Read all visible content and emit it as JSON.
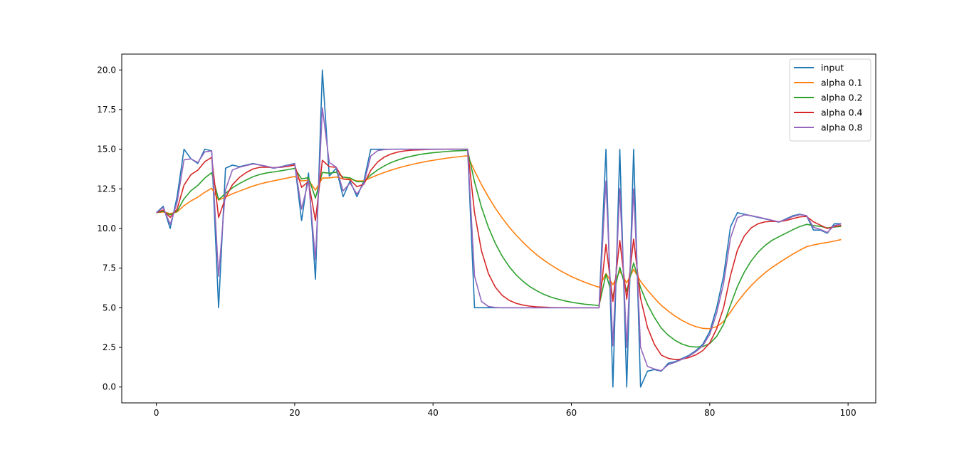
{
  "chart_data": {
    "type": "line",
    "title": "",
    "xlabel": "",
    "ylabel": "",
    "xlim": [
      -5,
      104
    ],
    "ylim": [
      -1,
      21
    ],
    "xticks": [
      0,
      20,
      40,
      60,
      80,
      100
    ],
    "xtick_labels": [
      "0",
      "20",
      "40",
      "60",
      "80",
      "100"
    ],
    "yticks": [
      0,
      2.5,
      5,
      7.5,
      10,
      12.5,
      15,
      17.5,
      20
    ],
    "ytick_labels": [
      "0.0",
      "2.5",
      "5.0",
      "7.5",
      "10.0",
      "12.5",
      "15.0",
      "17.5",
      "20.0"
    ],
    "grid": false,
    "legend_position": "upper-right",
    "series": [
      {
        "name": "input",
        "color": "#1f77b4",
        "values": [
          11,
          11.4,
          10,
          12,
          15,
          14.4,
          14.1,
          15,
          14.9,
          5,
          13.8,
          14,
          13.9,
          14,
          14.1,
          14,
          13.9,
          13.8,
          13.9,
          14,
          14.1,
          10.5,
          13.5,
          6.8,
          20,
          13.3,
          13.8,
          12,
          13,
          12,
          13,
          15,
          15,
          15,
          15,
          15,
          15,
          15,
          15,
          15,
          15,
          15,
          15,
          15,
          15,
          15,
          5,
          5,
          5,
          5,
          5,
          5,
          5,
          5,
          5,
          5,
          5,
          5,
          5,
          5,
          5,
          5,
          5,
          5,
          5,
          15,
          0,
          15,
          0,
          15,
          0,
          1,
          1.1,
          1,
          1.5,
          1.6,
          1.8,
          2,
          2.3,
          2.7,
          3.5,
          5,
          7,
          10.1,
          11,
          10.9,
          10.8,
          10.7,
          10.6,
          10.5,
          10.4,
          10.6,
          10.8,
          10.9,
          10.8,
          9.9,
          9.9,
          9.7,
          10.3,
          10.3
        ]
      },
      {
        "name": "alpha 0.1",
        "color": "#ff7f0e",
        "values": [
          11,
          11.04,
          10.94,
          11.04,
          11.44,
          11.74,
          11.98,
          12.28,
          12.54,
          11.79,
          11.99,
          12.19,
          12.36,
          12.52,
          12.68,
          12.81,
          12.92,
          13.01,
          13.1,
          13.19,
          13.28,
          13,
          13.05,
          12.42,
          13.18,
          13.19,
          13.25,
          13.13,
          13.12,
          13.0,
          13.0,
          13.2,
          13.38,
          13.54,
          13.69,
          13.82,
          13.94,
          14.04,
          14.14,
          14.23,
          14.3,
          14.37,
          14.44,
          14.49,
          14.54,
          14.59,
          13.63,
          12.77,
          11.99,
          11.29,
          10.66,
          10.09,
          9.59,
          9.13,
          8.71,
          8.34,
          8.01,
          7.71,
          7.44,
          7.19,
          6.97,
          6.78,
          6.6,
          6.44,
          6.29,
          7.16,
          6.45,
          7.3,
          6.57,
          7.42,
          6.67,
          6.11,
          5.61,
          5.15,
          4.79,
          4.47,
          4.2,
          3.98,
          3.81,
          3.7,
          3.68,
          3.81,
          4.13,
          4.73,
          5.36,
          5.91,
          6.4,
          6.83,
          7.21,
          7.54,
          7.83,
          8.11,
          8.38,
          8.63,
          8.85,
          8.96,
          9.05,
          9.12,
          9.21,
          9.3
        ]
      },
      {
        "name": "alpha 0.2",
        "color": "#2ca02c",
        "values": [
          11,
          11.08,
          10.86,
          11.09,
          11.87,
          12.38,
          12.72,
          13.18,
          13.52,
          11.82,
          12.21,
          12.57,
          12.83,
          13.06,
          13.27,
          13.41,
          13.51,
          13.57,
          13.64,
          13.71,
          13.79,
          13.13,
          13.21,
          11.92,
          13.54,
          13.49,
          13.55,
          13.24,
          13.19,
          12.95,
          12.96,
          13.37,
          13.7,
          13.96,
          14.17,
          14.33,
          14.47,
          14.57,
          14.66,
          14.73,
          14.78,
          14.82,
          14.86,
          14.89,
          14.91,
          14.93,
          12.94,
          11.35,
          10.08,
          9.07,
          8.25,
          7.6,
          7.08,
          6.67,
          6.33,
          6.07,
          5.85,
          5.68,
          5.55,
          5.44,
          5.35,
          5.28,
          5.22,
          5.18,
          5.14,
          7.11,
          5.69,
          7.55,
          6.04,
          7.83,
          6.27,
          5.21,
          4.39,
          3.71,
          3.27,
          2.94,
          2.71,
          2.57,
          2.52,
          2.55,
          2.74,
          3.19,
          3.95,
          5.18,
          6.34,
          7.25,
          7.96,
          8.51,
          8.93,
          9.25,
          9.48,
          9.7,
          9.92,
          10.12,
          10.26,
          10.19,
          10.13,
          10.04,
          10.09,
          10.13
        ]
      },
      {
        "name": "alpha 0.4",
        "color": "#d62728",
        "values": [
          11,
          11.16,
          10.7,
          11.22,
          12.73,
          13.4,
          13.68,
          14.21,
          14.49,
          10.69,
          11.94,
          12.76,
          13.22,
          13.53,
          13.76,
          13.86,
          13.87,
          13.84,
          13.86,
          13.92,
          14.0,
          12.6,
          12.96,
          10.5,
          14.3,
          13.9,
          13.86,
          13.12,
          13.07,
          12.64,
          12.79,
          13.67,
          14.2,
          14.52,
          14.71,
          14.83,
          14.9,
          14.94,
          14.96,
          14.98,
          14.99,
          14.99,
          15.0,
          15.0,
          15.0,
          15.0,
          11.0,
          8.6,
          7.16,
          6.3,
          5.78,
          5.47,
          5.28,
          5.17,
          5.1,
          5.06,
          5.04,
          5.02,
          5.01,
          5.01,
          5.0,
          5.0,
          5.0,
          5.0,
          5.0,
          9.0,
          5.4,
          9.24,
          5.54,
          9.33,
          5.6,
          3.76,
          2.69,
          2.01,
          1.81,
          1.73,
          1.76,
          1.86,
          2.03,
          2.3,
          2.78,
          3.67,
          5.0,
          7.04,
          8.63,
          9.53,
          10.04,
          10.3,
          10.42,
          10.45,
          10.43,
          10.5,
          10.62,
          10.73,
          10.76,
          10.42,
          10.21,
          10.0,
          10.12,
          10.19
        ]
      },
      {
        "name": "alpha 0.8",
        "color": "#9467bd",
        "values": [
          11,
          11.32,
          10.26,
          11.65,
          14.33,
          14.39,
          14.16,
          14.83,
          14.89,
          6.98,
          12.44,
          13.69,
          13.86,
          13.97,
          14.07,
          14.01,
          13.92,
          13.82,
          13.88,
          13.98,
          14.08,
          11.22,
          13.04,
          8.05,
          17.61,
          14.16,
          13.87,
          12.37,
          12.87,
          12.17,
          12.83,
          14.57,
          14.91,
          14.98,
          15.0,
          15.0,
          15.0,
          15.0,
          15.0,
          15.0,
          15.0,
          15.0,
          15.0,
          15.0,
          15.0,
          15.0,
          7.0,
          5.4,
          5.08,
          5.02,
          5.0,
          5.0,
          5.0,
          5.0,
          5.0,
          5.0,
          5.0,
          5.0,
          5.0,
          5.0,
          5.0,
          5.0,
          5.0,
          5.0,
          5.0,
          13.0,
          2.6,
          12.52,
          2.5,
          12.5,
          2.5,
          1.3,
          1.14,
          1.03,
          1.41,
          1.56,
          1.75,
          1.95,
          2.23,
          2.61,
          3.32,
          4.66,
          6.53,
          9.39,
          10.68,
          10.86,
          10.81,
          10.72,
          10.62,
          10.52,
          10.42,
          10.56,
          10.75,
          10.87,
          10.81,
          10.08,
          9.94,
          9.75,
          10.19,
          10.28
        ]
      }
    ]
  }
}
